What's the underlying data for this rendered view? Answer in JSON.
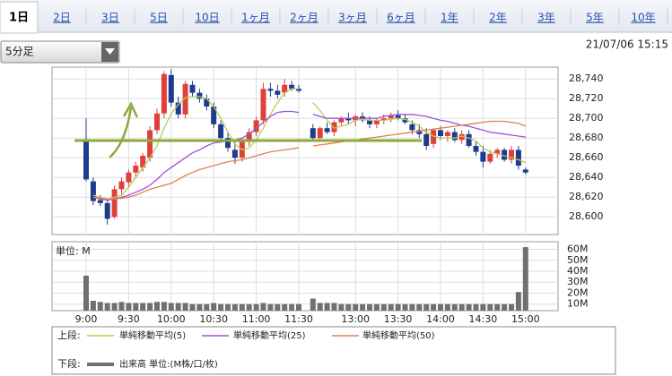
{
  "header": {
    "tabs": [
      "1日",
      "2日",
      "3日",
      "5日",
      "10日",
      "1ヶ月",
      "2ヶ月",
      "3ヶ月",
      "6ヶ月",
      "1年",
      "2年",
      "3年",
      "5年",
      "10年"
    ],
    "selected_tab": 0,
    "dropdown": "5分足",
    "timestamp": "21/07/06 15:15"
  },
  "chart_data": [
    {
      "type": "candlestick",
      "legend_label": "上段:",
      "up_color": "#e0403a",
      "down_color": "#1f3a8f",
      "open": [
        28676,
        28636,
        28617,
        28614,
        28600,
        28628,
        28635,
        28645,
        28650,
        28660,
        28688,
        28705,
        28744,
        28716,
        28704,
        28734,
        28726,
        28720,
        28712,
        28694,
        28680,
        28668,
        28660,
        28676,
        28686,
        28698,
        28730,
        28728,
        28726,
        28734,
        28730,
        null,
        28690,
        28680,
        28690,
        28686,
        28696,
        28700,
        28698,
        28702,
        28698,
        28694,
        28698,
        28700,
        28703,
        28700,
        28694,
        28688,
        28684,
        28674,
        28688,
        28682,
        28686,
        28678,
        28684,
        28672,
        28666,
        28656,
        28664,
        28668,
        28658,
        28668,
        28648
      ],
      "high": [
        28700,
        28640,
        28622,
        28618,
        28632,
        28640,
        28648,
        28656,
        28665,
        28692,
        28710,
        28748,
        28750,
        28722,
        28738,
        28738,
        28730,
        28724,
        28716,
        28698,
        28686,
        28676,
        28680,
        28690,
        28702,
        28736,
        28736,
        28734,
        28740,
        28738,
        28734,
        null,
        28694,
        28692,
        28696,
        28698,
        28702,
        28706,
        28704,
        28706,
        28702,
        28700,
        28704,
        28706,
        28708,
        28704,
        28698,
        28694,
        28690,
        28690,
        28692,
        28688,
        28690,
        28688,
        28688,
        28676,
        28672,
        28668,
        28670,
        28670,
        28672,
        28672,
        28650
      ],
      "low": [
        28636,
        28612,
        28611,
        28592,
        28598,
        28622,
        28630,
        28640,
        28646,
        28656,
        28684,
        28700,
        28712,
        28700,
        28700,
        28722,
        28716,
        28708,
        28690,
        28676,
        28666,
        28654,
        28656,
        28672,
        28682,
        28694,
        28722,
        28720,
        28722,
        28728,
        28726,
        null,
        28678,
        28678,
        28684,
        28682,
        28692,
        28694,
        28692,
        28696,
        28690,
        28690,
        28694,
        28696,
        28698,
        28694,
        28684,
        28680,
        28668,
        28670,
        28678,
        28676,
        28676,
        28674,
        28670,
        28662,
        28650,
        28654,
        28660,
        28656,
        28654,
        28648,
        28643
      ],
      "close": [
        28638,
        28616,
        28614,
        28598,
        28628,
        28636,
        28645,
        28652,
        28662,
        28688,
        28705,
        28745,
        28716,
        28704,
        28735,
        28726,
        28720,
        28712,
        28694,
        28680,
        28670,
        28660,
        28676,
        28686,
        28698,
        28730,
        28728,
        28724,
        28734,
        28730,
        28728,
        null,
        28680,
        28690,
        28686,
        28696,
        28700,
        28698,
        28702,
        28698,
        28694,
        28698,
        28700,
        28703,
        28700,
        28696,
        28688,
        28684,
        28672,
        28688,
        28682,
        28686,
        28678,
        28684,
        28672,
        28666,
        28656,
        28664,
        28668,
        28658,
        28668,
        28652,
        28645
      ],
      "series": [
        {
          "name": "単純移動平均(5)",
          "color": "#b5cc55",
          "values": [
            null,
            28622,
            28620,
            28618,
            28620,
            28622,
            28630,
            28640,
            28650,
            28660,
            28672,
            28690,
            28705,
            28714,
            28721,
            28722,
            28722,
            28720,
            28712,
            28700,
            28686,
            28674,
            28668,
            28670,
            28678,
            28690,
            28704,
            28716,
            28726,
            28730,
            28730,
            null,
            28716,
            28708,
            28698,
            28690,
            28692,
            28694,
            28698,
            28699,
            28698,
            28698,
            28698,
            28699,
            28700,
            28699,
            28696,
            28692,
            28686,
            28682,
            28680,
            28680,
            28680,
            28682,
            28680,
            28677,
            28670,
            28666,
            28664,
            28662,
            28660,
            28658,
            28655
          ]
        },
        {
          "name": "単純移動平均(25)",
          "color": "#a050d8",
          "values": [
            null,
            28620,
            28618,
            28617,
            28618,
            28620,
            28622,
            28625,
            28628,
            28632,
            28638,
            28645,
            28650,
            28655,
            28660,
            28665,
            28668,
            28672,
            28675,
            28676,
            28677,
            28678,
            28680,
            28684,
            28690,
            28696,
            28702,
            28706,
            28707,
            28707,
            28706,
            null,
            28704,
            28702,
            28700,
            28700,
            28700,
            28700,
            28700,
            28700,
            28700,
            28700,
            28702,
            28703,
            28704,
            28704,
            28704,
            28703,
            28702,
            28700,
            28698,
            28697,
            28695,
            28693,
            28692,
            28690,
            28688,
            28686,
            28685,
            28684,
            28683,
            28682,
            28681
          ]
        },
        {
          "name": "単純移動平均(50)",
          "color": "#e08050",
          "values": [
            null,
            28620,
            28619,
            28618,
            28618,
            28619,
            28620,
            28622,
            28625,
            28628,
            28630,
            28632,
            28634,
            28638,
            28642,
            28645,
            28648,
            28650,
            28652,
            28654,
            28656,
            28657,
            28658,
            28660,
            28662,
            28664,
            28666,
            28667,
            28668,
            28669,
            28670,
            null,
            28672,
            28673,
            28674,
            28675,
            28676,
            28677,
            28678,
            28679,
            28680,
            28681,
            28682,
            28683,
            28684,
            28685,
            28686,
            28687,
            28688,
            28689,
            28690,
            28691,
            28692,
            28693,
            28694,
            28695,
            28696,
            28697,
            28697,
            28697,
            28696,
            28695,
            28692
          ]
        }
      ],
      "ylim": [
        28582,
        28752
      ],
      "yticks": [
        {
          "value": 28600,
          "label": "28,600"
        },
        {
          "value": 28620,
          "label": "28,620"
        },
        {
          "value": 28640,
          "label": "28,640"
        },
        {
          "value": 28660,
          "label": "28,660"
        },
        {
          "value": 28680,
          "label": "28,680"
        },
        {
          "value": 28700,
          "label": "28,700"
        },
        {
          "value": 28720,
          "label": "28,720"
        },
        {
          "value": 28740,
          "label": "28,740"
        }
      ],
      "grid": true
    },
    {
      "type": "bar",
      "legend_label": "下段:",
      "unit_label": "単位: M",
      "categories": [
        "9:00",
        null,
        null,
        null,
        null,
        null,
        "9:30",
        null,
        null,
        null,
        null,
        null,
        "10:00",
        null,
        null,
        null,
        null,
        null,
        "10:30",
        null,
        null,
        null,
        null,
        null,
        "11:00",
        null,
        null,
        null,
        null,
        null,
        "11:30",
        null,
        null,
        null,
        null,
        null,
        null,
        null,
        "13:00",
        null,
        null,
        null,
        null,
        null,
        "13:30",
        null,
        null,
        null,
        null,
        null,
        "14:00",
        null,
        null,
        null,
        null,
        null,
        "14:30",
        null,
        null,
        null,
        null,
        null,
        "15:00"
      ],
      "series": [
        {
          "name": "出来高 単位:(M株/口/枚)",
          "color": "#707070",
          "values": [
            36,
            13,
            12,
            11,
            11,
            12,
            11,
            11,
            11,
            11,
            12,
            12,
            11,
            11,
            11,
            10,
            10,
            10,
            11,
            10,
            10,
            10,
            10,
            10,
            10,
            11,
            10,
            10,
            10,
            10,
            10,
            null,
            15,
            11,
            11,
            11,
            10,
            10,
            10,
            10,
            10,
            10,
            10,
            10,
            10,
            10,
            10,
            10,
            10,
            10,
            10,
            10,
            10,
            10,
            10,
            10,
            10,
            10,
            10,
            10,
            10,
            21,
            62
          ]
        }
      ],
      "ylim": [
        4,
        67
      ],
      "yticks": [
        {
          "value": 10,
          "label": "10M"
        },
        {
          "value": 20,
          "label": "20M"
        },
        {
          "value": 30,
          "label": "30M"
        },
        {
          "value": 40,
          "label": "40M"
        },
        {
          "value": 50,
          "label": "50M"
        },
        {
          "value": 60,
          "label": "60M"
        }
      ],
      "grid": true
    }
  ]
}
